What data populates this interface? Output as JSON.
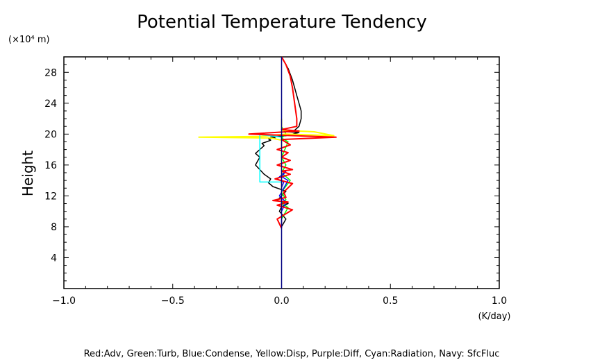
{
  "chart_data": {
    "type": "line",
    "title": "Potential Temperature Tendency",
    "xlabel": "(K/day)",
    "ylabel": "Height",
    "y_unit_label": "(×10⁴ m)",
    "xlim": [
      -1.0,
      1.0
    ],
    "ylim": [
      0,
      30
    ],
    "x_ticks": [
      -1.0,
      -0.5,
      0.0,
      0.5,
      1.0
    ],
    "x_tick_labels": [
      "−1.0",
      "−0.5",
      "0.0",
      "0.5",
      "1.0"
    ],
    "y_ticks": [
      4,
      8,
      12,
      16,
      20,
      24,
      28
    ],
    "y_tick_labels": [
      "4",
      "8",
      "12",
      "16",
      "20",
      "24",
      "28"
    ],
    "legend_text": "Red:Adv, Green:Turb, Blue:Condense, Yellow:Disp, Purple:Diff, Cyan:Radiation, Navy: SfcFluc",
    "series": [
      {
        "color": "#000000",
        "x": [
          0.0,
          0.02,
          -0.01,
          0.0,
          0.03,
          -0.02,
          0.0,
          0.02,
          -0.04,
          -0.06,
          -0.05,
          -0.08,
          -0.1,
          -0.12,
          -0.11,
          -0.1,
          -0.12,
          -0.1,
          -0.08,
          -0.09,
          -0.07,
          -0.05,
          -0.06,
          -0.03,
          -0.05,
          0.02,
          0.05,
          0.08,
          0.03,
          0.06,
          0.08,
          0.09,
          0.09,
          0.08,
          0.07,
          0.06,
          0.05,
          0.03,
          0.0
        ],
        "y": [
          8.0,
          9.0,
          10.0,
          10.6,
          11.0,
          11.4,
          12.0,
          12.6,
          13.2,
          13.7,
          14.2,
          14.8,
          15.4,
          16.0,
          16.5,
          17.0,
          17.5,
          18.0,
          18.5,
          18.8,
          19.0,
          19.2,
          19.4,
          19.5,
          19.6,
          19.8,
          20.0,
          20.2,
          20.3,
          20.5,
          21.0,
          22.0,
          23.0,
          24.0,
          25.0,
          26.0,
          27.0,
          28.5,
          30.0
        ]
      },
      {
        "color": "#00ff00",
        "x": [
          0.0,
          0.03,
          0.0,
          0.02,
          0.0,
          0.04,
          0.0,
          0.02,
          0.0,
          0.03,
          0.0,
          0.02,
          0.0
        ],
        "y": [
          9.0,
          10.5,
          11.0,
          11.5,
          12.5,
          14.0,
          15.0,
          16.0,
          17.0,
          19.0,
          19.5,
          20.0,
          21.0
        ]
      },
      {
        "color": "#0000ff",
        "x": [
          0.0,
          0.02,
          -0.01,
          0.03,
          0.0,
          0.02,
          -0.02,
          0.01,
          0.0
        ],
        "y": [
          10.0,
          11.2,
          12.0,
          14.0,
          14.5,
          15.2,
          14.2,
          13.8,
          13.0
        ]
      },
      {
        "color": "#ffff00",
        "x": [
          0.0,
          0.0,
          -0.05,
          -0.38,
          -0.1,
          0.02,
          0.24,
          0.15,
          0.0,
          0.0
        ],
        "y": [
          12.0,
          19.2,
          19.5,
          19.6,
          19.7,
          20.0,
          19.8,
          20.3,
          20.5,
          22.0
        ]
      },
      {
        "color": "#800080",
        "x": [
          0.0,
          0.0
        ],
        "y": [
          7.8,
          9.0
        ]
      },
      {
        "color": "#00ffff",
        "x": [
          0.0,
          -0.1,
          -0.1,
          -0.12,
          0.0,
          0.0
        ],
        "y": [
          13.8,
          13.8,
          20.0,
          20.0,
          19.6,
          20.3
        ]
      },
      {
        "color": "#ff0000",
        "x": [
          0.0,
          -0.02,
          0.05,
          -0.02,
          0.03,
          -0.04,
          0.02,
          0.01,
          0.05,
          -0.03,
          0.04,
          0.0,
          0.05,
          -0.02,
          0.04,
          0.0,
          0.03,
          -0.02,
          0.04,
          0.0,
          0.25,
          -0.15,
          0.08,
          0.0,
          0.07,
          0.07,
          0.06,
          0.05,
          0.04,
          0.02,
          0.0
        ],
        "y": [
          7.8,
          9.0,
          10.2,
          10.8,
          11.2,
          11.4,
          11.8,
          12.5,
          13.6,
          14.2,
          14.8,
          15.2,
          15.4,
          16.0,
          16.6,
          17.0,
          17.6,
          18.0,
          18.6,
          19.3,
          19.6,
          20.0,
          20.4,
          20.6,
          21.0,
          22.0,
          24.0,
          26.0,
          27.5,
          29.0,
          30.0
        ]
      },
      {
        "color": "#000080",
        "x": [
          0.0,
          0.0
        ],
        "y": [
          0.0,
          30.0
        ]
      }
    ]
  }
}
